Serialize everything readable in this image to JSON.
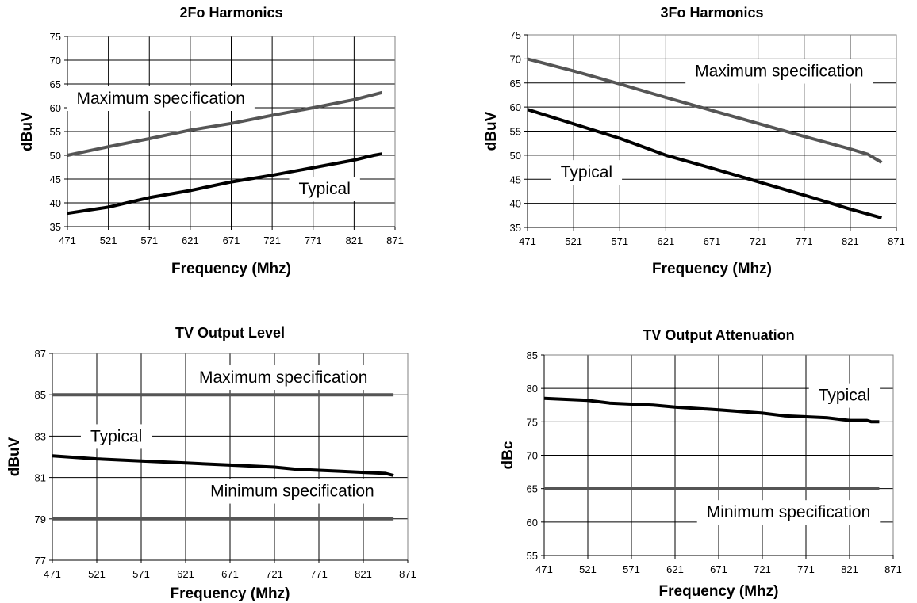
{
  "chart_data": [
    {
      "type": "line",
      "title": "2Fo Harmonics",
      "xlabel": "Frequency (Mhz)",
      "ylabel": "dBuV",
      "xlim": [
        471,
        871
      ],
      "ylim": [
        35,
        75
      ],
      "xticks": [
        471,
        521,
        571,
        621,
        671,
        721,
        771,
        821,
        871
      ],
      "yticks": [
        35,
        40,
        45,
        50,
        55,
        60,
        65,
        70,
        75
      ],
      "grid": true,
      "series": [
        {
          "name": "Maximum specification",
          "color": "#555555",
          "x": [
            471,
            521,
            571,
            621,
            671,
            721,
            771,
            821,
            855
          ],
          "y": [
            50,
            51.8,
            53.5,
            55.3,
            56.7,
            58.4,
            60,
            61.7,
            63.2
          ]
        },
        {
          "name": "Typical",
          "color": "#000000",
          "x": [
            471,
            521,
            571,
            621,
            671,
            721,
            771,
            821,
            845,
            855
          ],
          "y": [
            37.8,
            39.1,
            41.1,
            42.6,
            44.4,
            45.8,
            47.4,
            49.0,
            50.0,
            50.3
          ]
        }
      ],
      "annotations": [
        {
          "text": "Maximum specification",
          "x": 585,
          "y": 62
        },
        {
          "text": "Typical",
          "x": 785,
          "y": 43
        }
      ]
    },
    {
      "type": "line",
      "title": "3Fo Harmonics",
      "xlabel": "Frequency (Mhz)",
      "ylabel": "dBuV",
      "xlim": [
        471,
        871
      ],
      "ylim": [
        35,
        75
      ],
      "xticks": [
        471,
        521,
        571,
        621,
        671,
        721,
        771,
        821,
        871
      ],
      "yticks": [
        35,
        40,
        45,
        50,
        55,
        60,
        65,
        70,
        75
      ],
      "grid": true,
      "series": [
        {
          "name": "Maximum specification",
          "color": "#555555",
          "x": [
            471,
            521,
            571,
            621,
            671,
            721,
            771,
            821,
            840,
            855
          ],
          "y": [
            70,
            67.5,
            64.8,
            62,
            59.3,
            56.6,
            53.9,
            51.3,
            50.2,
            48.5
          ]
        },
        {
          "name": "Typical",
          "color": "#000000",
          "x": [
            471,
            521,
            571,
            621,
            671,
            721,
            771,
            821,
            855
          ],
          "y": [
            59.5,
            56.5,
            53.5,
            50.0,
            47.3,
            44.5,
            41.7,
            38.8,
            37.0
          ]
        }
      ],
      "annotations": [
        {
          "text": "Maximum specification",
          "x": 744,
          "y": 67.5
        },
        {
          "text": "Typical",
          "x": 535,
          "y": 46.5
        }
      ]
    },
    {
      "type": "line",
      "title": "TV Output Level",
      "xlabel": "Frequency (Mhz)",
      "ylabel": "dBuV",
      "xlim": [
        471,
        871
      ],
      "ylim": [
        77,
        87
      ],
      "xticks": [
        471,
        521,
        571,
        621,
        671,
        721,
        771,
        821,
        871
      ],
      "yticks": [
        77,
        79,
        81,
        83,
        85,
        87
      ],
      "grid": true,
      "series": [
        {
          "name": "Maximum specification",
          "color": "#555555",
          "x": [
            471,
            855
          ],
          "y": [
            85,
            85
          ]
        },
        {
          "name": "Typical",
          "color": "#000000",
          "x": [
            471,
            521,
            571,
            621,
            671,
            721,
            746,
            771,
            796,
            821,
            846,
            855
          ],
          "y": [
            82.05,
            81.9,
            81.8,
            81.7,
            81.6,
            81.5,
            81.4,
            81.35,
            81.3,
            81.25,
            81.2,
            81.1
          ]
        },
        {
          "name": "Minimum specification",
          "color": "#555555",
          "x": [
            471,
            855
          ],
          "y": [
            79,
            79
          ]
        }
      ],
      "annotations": [
        {
          "text": "Maximum specification",
          "x": 731,
          "y": 85.85
        },
        {
          "text": "Typical",
          "x": 543,
          "y": 83
        },
        {
          "text": "Minimum specification",
          "x": 741,
          "y": 80.35
        }
      ]
    },
    {
      "type": "line",
      "title": "TV Output Attenuation",
      "xlabel": "Frequency (Mhz)",
      "ylabel": "dBc",
      "xlim": [
        471,
        871
      ],
      "ylim": [
        55,
        85
      ],
      "xticks": [
        471,
        521,
        571,
        621,
        671,
        721,
        771,
        821,
        871
      ],
      "yticks": [
        55,
        60,
        65,
        70,
        75,
        80,
        85
      ],
      "grid": true,
      "series": [
        {
          "name": "Typical",
          "color": "#000000",
          "x": [
            471,
            521,
            546,
            596,
            621,
            671,
            721,
            746,
            796,
            821,
            841,
            846,
            855
          ],
          "y": [
            78.5,
            78.2,
            77.8,
            77.5,
            77.2,
            76.8,
            76.3,
            75.9,
            75.6,
            75.2,
            75.2,
            75.0,
            75.0
          ]
        },
        {
          "name": "Minimum specification",
          "color": "#555555",
          "x": [
            471,
            855
          ],
          "y": [
            65,
            65
          ]
        }
      ],
      "annotations": [
        {
          "text": "Typical",
          "x": 815,
          "y": 79
        },
        {
          "text": "Minimum specification",
          "x": 751,
          "y": 61.5
        }
      ]
    }
  ]
}
